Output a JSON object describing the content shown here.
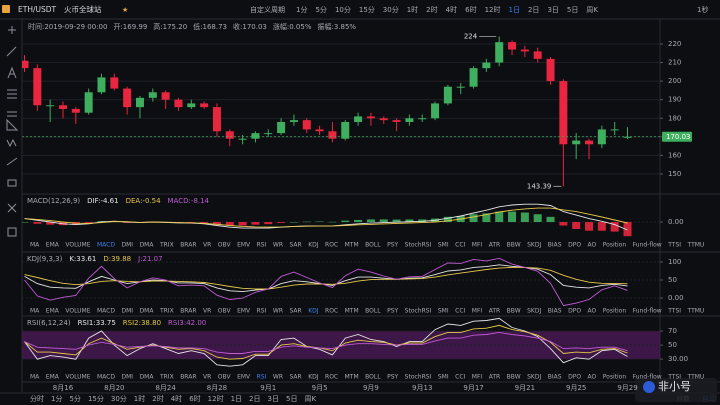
{
  "toolbar": {
    "symbol": "ETH/USDT",
    "exchange": "火币全球站",
    "custom": "自定义周期",
    "periods": [
      "1分",
      "5分",
      "10分",
      "15分",
      "30分",
      "1时",
      "2时",
      "4时",
      "6时",
      "12时",
      "1日",
      "2日",
      "3日",
      "5日",
      "周K"
    ],
    "active": "1日",
    "refresh": "1秒"
  },
  "info": [
    "时间:2019-09-29 00:00",
    "开:169.99",
    "高:175.20",
    "低:168.73",
    "收:170.03",
    "涨幅:0.05%",
    "振幅:3.85%"
  ],
  "indicator_tabs": [
    "MA",
    "EMA",
    "VOLUME",
    "MACD",
    "DMI",
    "DMA",
    "TRIX",
    "BRAR",
    "VR",
    "OBV",
    "EMV",
    "RSI",
    "WR",
    "SAR",
    "KDJ",
    "ROC",
    "MTM",
    "BOLL",
    "PSY",
    "StochRSI",
    "SMI",
    "CCI",
    "MFI",
    "ATR",
    "BBW",
    "SKDJ",
    "BIAS",
    "DPO",
    "AO",
    "Position",
    "Fund-flow",
    "TTSI",
    "TTMU"
  ],
  "bottom_bar": {
    "periods": [
      "分时",
      "1分",
      "5分",
      "15分",
      "30分",
      "1时",
      "2时",
      "4时",
      "6时",
      "12时",
      "1日",
      "2日",
      "3日",
      "5日",
      "周K"
    ],
    "log": "对数",
    "auto": "自动"
  },
  "watermark": "非小号",
  "chart_data": [
    {
      "type": "candlestick",
      "categories": [
        null,
        null,
        null,
        "8月16",
        null,
        null,
        null,
        "8月20",
        null,
        null,
        null,
        "8月24",
        null,
        null,
        null,
        "8月28",
        null,
        null,
        null,
        "9月1",
        null,
        null,
        null,
        "9月5",
        null,
        null,
        null,
        "9月9",
        null,
        null,
        null,
        "9月13",
        null,
        null,
        null,
        "9月17",
        null,
        null,
        null,
        "9月21",
        null,
        null,
        null,
        "9月25",
        null,
        null,
        null,
        "9月29"
      ],
      "open": [
        211,
        207,
        187,
        187,
        185,
        183,
        194,
        202,
        196,
        186,
        191,
        194,
        190,
        186,
        188,
        186,
        173,
        169,
        169,
        172,
        172,
        178,
        179,
        174,
        173,
        169,
        178,
        181,
        180,
        179,
        178,
        180,
        180,
        188,
        197,
        197,
        207,
        210,
        221,
        217,
        216,
        212,
        200,
        166,
        168,
        166,
        174,
        169.99
      ],
      "high": [
        214,
        209,
        190,
        189,
        186,
        196,
        204,
        204,
        197,
        192,
        196,
        195,
        191,
        190,
        189,
        188,
        174,
        171,
        173,
        174,
        180,
        182,
        180,
        176,
        178,
        179,
        183,
        183,
        181,
        180,
        182,
        182,
        189,
        198,
        199,
        208,
        212,
        224,
        222,
        219,
        218,
        213,
        201,
        172,
        169,
        176,
        178,
        175.2
      ],
      "low": [
        205,
        184,
        178,
        180,
        177,
        182,
        193,
        195,
        182,
        180,
        189,
        185,
        184,
        185,
        185,
        170,
        165,
        166,
        167,
        170,
        171,
        176,
        172,
        171,
        167,
        168,
        176,
        176,
        177,
        173,
        176,
        178,
        179,
        187,
        193,
        196,
        205,
        208,
        214,
        213,
        210,
        198,
        143.39,
        158,
        158,
        164,
        171,
        168.73
      ],
      "close": [
        207,
        187,
        187,
        185,
        183,
        194,
        202,
        196,
        186,
        191,
        194,
        190,
        186,
        188,
        186,
        173,
        169,
        169,
        172,
        172,
        178,
        179,
        174,
        173,
        169,
        178,
        181,
        180,
        179,
        178,
        180,
        180,
        188,
        197,
        197,
        207,
        210,
        221,
        217,
        216,
        212,
        200,
        166,
        168,
        166,
        174,
        174,
        170.03
      ],
      "up_color": "#3fae5f",
      "down_color": "#e8263f",
      "ylim": [
        140.3,
        224.3
      ],
      "yticks": [
        150,
        160,
        170,
        180,
        190,
        200,
        210,
        220
      ],
      "annotations": [
        "224",
        "143.39",
        "170.03"
      ]
    },
    {
      "type": "macd",
      "header": [
        "MACD(12,26,9)",
        "DIF:-4.61",
        "DEA:-0.54",
        "MACD:-8.14"
      ],
      "histogram": [
        0,
        -1,
        -1.5,
        -1.8,
        -1.5,
        -0.5,
        0.5,
        0.3,
        -0.5,
        -0.3,
        0,
        -0.2,
        -0.4,
        -0.3,
        -0.5,
        -1.5,
        -2,
        -2,
        -1.5,
        -1.2,
        -0.5,
        0,
        0.2,
        0.3,
        0.1,
        0.8,
        1.2,
        1.5,
        1.5,
        1.4,
        1.5,
        1.5,
        2,
        3,
        3.5,
        4.5,
        5,
        6,
        6,
        5.5,
        4.5,
        3,
        -2,
        -4,
        -5,
        -5,
        -5.5,
        -8.14
      ],
      "up_color": "#3fae5f",
      "down_color": "#e8263f",
      "series": [
        {
          "color": "#e6e6e6",
          "values": [
            2,
            1,
            0,
            -1,
            -1.5,
            -1,
            0,
            0.5,
            0,
            -0.3,
            0,
            -0.2,
            -0.5,
            -0.6,
            -1,
            -2,
            -3,
            -3.5,
            -3.5,
            -3.5,
            -3,
            -2.5,
            -2.3,
            -2.2,
            -2.2,
            -1.6,
            -1,
            -0.6,
            -0.3,
            -0.1,
            0.2,
            0.4,
            1,
            2.2,
            3.5,
            5.2,
            6.8,
            8.8,
            9.8,
            10.3,
            10.3,
            9.5,
            6,
            4,
            2,
            0.4,
            -1.5,
            -4.61
          ]
        },
        {
          "color": "#e6c84a",
          "values": [
            2,
            1.5,
            0.8,
            0,
            -0.7,
            -0.8,
            -0.3,
            0.3,
            0.2,
            -0.2,
            0,
            -0.1,
            -0.3,
            -0.45,
            -0.75,
            -1.3,
            -2,
            -2.5,
            -2.8,
            -2.9,
            -2.8,
            -2.5,
            -2.4,
            -2.35,
            -2.25,
            -2,
            -1.6,
            -1.35,
            -1.05,
            -0.8,
            -0.55,
            -0.35,
            0,
            0.7,
            1.75,
            2.95,
            4.3,
            5.8,
            6.8,
            7.55,
            8.05,
            8,
            7,
            6,
            4.5,
            2.9,
            1.2,
            -0.54
          ]
        }
      ],
      "ylim": [
        -9.2,
        15
      ],
      "yticks": [
        {
          "value": 0,
          "label": "0.00"
        }
      ]
    },
    {
      "type": "line",
      "header": [
        "KDJ(9,3,3)",
        "K:33.61",
        "D:39.88",
        "J:21.07"
      ],
      "series": [
        {
          "color": "#e6e6e6",
          "values": [
            60,
            40,
            30,
            28,
            27,
            45,
            60,
            50,
            40,
            45,
            50,
            48,
            42,
            42,
            40,
            28,
            20,
            18,
            22,
            25,
            40,
            48,
            45,
            40,
            35,
            48,
            58,
            58,
            55,
            52,
            55,
            56,
            65,
            75,
            78,
            85,
            87,
            92,
            88,
            85,
            80,
            65,
            35,
            30,
            28,
            35,
            38,
            33.61
          ]
        },
        {
          "color": "#e6c84a",
          "values": [
            65,
            57,
            48,
            41,
            37,
            40,
            46,
            48,
            46,
            45,
            47,
            47,
            46,
            45,
            43,
            38,
            32,
            27,
            25,
            25,
            30,
            36,
            39,
            39,
            38,
            41,
            47,
            51,
            52,
            52,
            53,
            54,
            58,
            64,
            69,
            74,
            79,
            83,
            85,
            85,
            83,
            77,
            63,
            52,
            44,
            41,
            40,
            39.88
          ]
        },
        {
          "color": "#c15bd6",
          "values": [
            50,
            6,
            -6,
            2,
            7,
            55,
            88,
            54,
            28,
            45,
            56,
            50,
            34,
            36,
            34,
            8,
            -4,
            0,
            16,
            25,
            60,
            72,
            57,
            42,
            29,
            62,
            80,
            72,
            61,
            52,
            59,
            60,
            79,
            97,
            96,
            107,
            103,
            110,
            94,
            85,
            74,
            41,
            -21,
            -14,
            -4,
            23,
            34,
            21.07
          ]
        }
      ],
      "ylim": [
        -22,
        122
      ],
      "yticks": [
        100,
        50,
        {
          "value": 0,
          "label": "0.00"
        }
      ]
    },
    {
      "type": "line",
      "header": [
        "RSI(6,12,24)",
        "RSI1:33.75",
        "RSI2:38.80",
        "RSI3:42.00"
      ],
      "band_color": "#4a1a55",
      "series": [
        {
          "color": "#e6e6e6",
          "values": [
            55,
            30,
            35,
            33,
            30,
            60,
            70,
            50,
            35,
            45,
            52,
            45,
            38,
            42,
            38,
            22,
            20,
            22,
            35,
            35,
            58,
            60,
            48,
            44,
            36,
            60,
            65,
            58,
            55,
            48,
            55,
            55,
            72,
            80,
            78,
            84,
            85,
            88,
            75,
            70,
            62,
            45,
            25,
            32,
            30,
            42,
            44,
            33.75
          ]
        },
        {
          "color": "#e6c84a",
          "values": [
            55,
            40,
            40,
            38,
            36,
            52,
            60,
            52,
            44,
            47,
            50,
            47,
            44,
            45,
            42,
            33,
            30,
            31,
            37,
            37,
            50,
            52,
            48,
            46,
            42,
            53,
            57,
            55,
            54,
            50,
            53,
            53,
            62,
            68,
            68,
            73,
            74,
            78,
            72,
            69,
            64,
            54,
            38,
            40,
            39,
            44,
            45,
            38.8
          ]
        },
        {
          "color": "#c15bd6",
          "values": [
            55,
            47,
            46,
            45,
            44,
            50,
            54,
            51,
            47,
            48,
            49,
            48,
            46,
            46,
            45,
            40,
            38,
            38,
            41,
            41,
            47,
            49,
            47,
            46,
            45,
            50,
            52,
            52,
            51,
            50,
            51,
            51,
            56,
            60,
            60,
            64,
            65,
            68,
            65,
            63,
            60,
            55,
            45,
            46,
            45,
            47,
            47,
            42
          ]
        }
      ],
      "ylim": [
        14.6,
        88.5
      ],
      "yticks": [
        70,
        50,
        {
          "value": 30,
          "label": "30.00"
        }
      ]
    }
  ]
}
